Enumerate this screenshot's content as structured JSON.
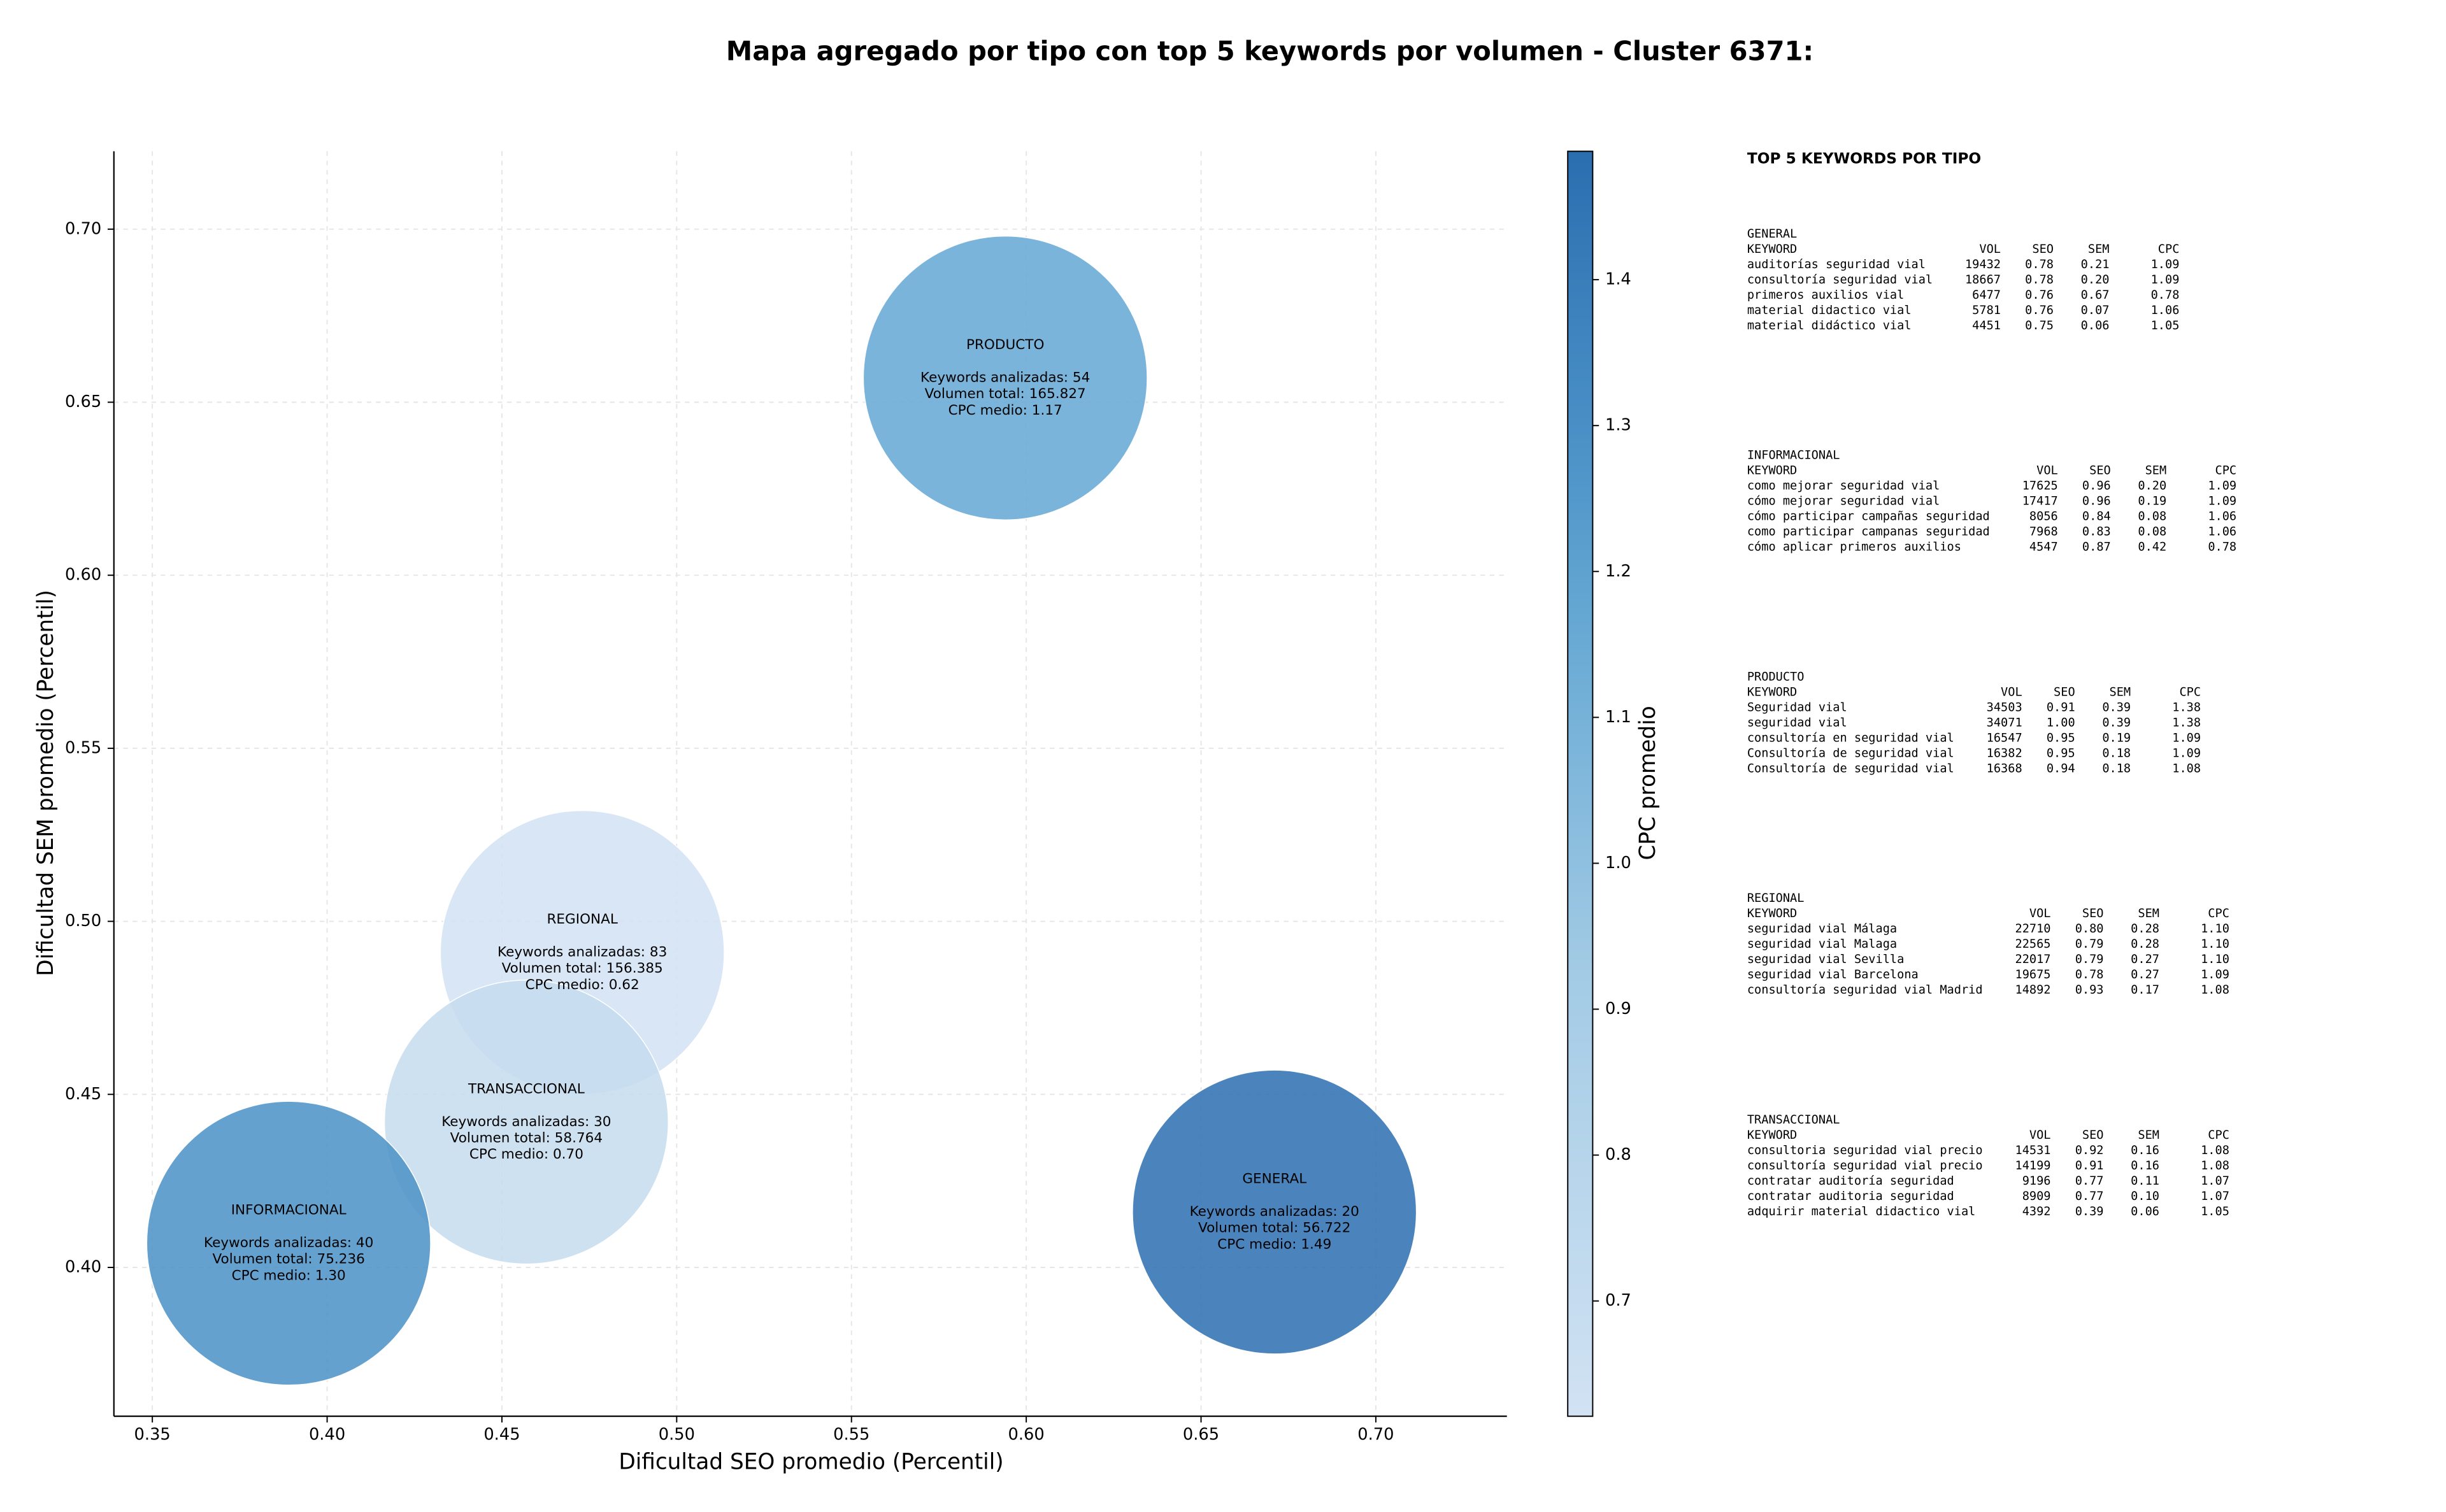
{
  "chart_data": {
    "type": "scatter",
    "title": "Mapa agregado por tipo con top 5 keywords por volumen - Cluster 6371:",
    "xlabel": "Dificultad SEO promedio (Percentil)",
    "ylabel": "Dificultad SEM promedio (Percentil)",
    "colorbar_label": "CPC promedio",
    "names": [
      "PRODUCTO",
      "REGIONAL",
      "TRANSACCIONAL",
      "INFORMACIONAL",
      "GENERAL"
    ],
    "x": [
      0.594,
      0.473,
      0.457,
      0.389,
      0.671
    ],
    "values": [
      0.657,
      0.491,
      0.442,
      0.407,
      0.416
    ],
    "color_values": [
      1.17,
      0.62,
      0.7,
      1.3,
      1.49
    ],
    "annotations": [
      [
        "Keywords analizadas: 54",
        "Volumen total: 165.827",
        "CPC medio: 1.17"
      ],
      [
        "Keywords analizadas: 83",
        "Volumen total: 156.385",
        "CPC medio: 0.62"
      ],
      [
        "Keywords analizadas: 30",
        "Volumen total: 58.764",
        "CPC medio: 0.70"
      ],
      [
        "Keywords analizadas: 40",
        "Volumen total: 75.236",
        "CPC medio: 1.30"
      ],
      [
        "Keywords analizadas: 20",
        "Volumen total: 56.722",
        "CPC medio: 1.49"
      ]
    ],
    "xlim": [
      0.339,
      0.7375
    ],
    "ylim": [
      0.357,
      0.7225
    ],
    "xticks": [
      0.35,
      {
        "value": 0.4,
        "label": "0.40"
      },
      0.45,
      {
        "value": 0.5,
        "label": "0.50"
      },
      0.55,
      {
        "value": 0.6,
        "label": "0.60"
      },
      0.65,
      {
        "value": 0.7,
        "label": "0.70"
      }
    ],
    "yticks": [
      {
        "value": 0.4,
        "label": "0.40"
      },
      0.45,
      {
        "value": 0.5,
        "label": "0.50"
      },
      0.55,
      {
        "value": 0.6,
        "label": "0.60"
      },
      0.65,
      {
        "value": 0.7,
        "label": "0.70"
      }
    ],
    "clim": [
      0.621,
      1.488
    ],
    "cticks": [
      0.7,
      0.8,
      0.9,
      {
        "value": 1.0,
        "label": "1.0"
      },
      1.1,
      1.2,
      1.3,
      1.4
    ],
    "grid": true
  },
  "side_panel": {
    "title": "TOP 5 KEYWORDS POR TIPO",
    "tables": [
      {
        "name": "GENERAL",
        "columns": [
          "KEYWORD",
          "VOL",
          "SEO",
          "SEM",
          "CPC"
        ],
        "rows": [
          [
            "auditorías seguridad vial",
            "19432",
            "0.78",
            "0.21",
            "1.09"
          ],
          [
            "consultoría seguridad vial",
            "18667",
            "0.78",
            "0.20",
            "1.09"
          ],
          [
            "primeros auxilios vial",
            "6477",
            "0.76",
            "0.67",
            "0.78"
          ],
          [
            "material didactico vial",
            "5781",
            "0.76",
            "0.07",
            "1.06"
          ],
          [
            "material didáctico vial",
            "4451",
            "0.75",
            "0.06",
            "1.05"
          ]
        ]
      },
      {
        "name": "INFORMACIONAL",
        "columns": [
          "KEYWORD",
          "VOL",
          "SEO",
          "SEM",
          "CPC"
        ],
        "rows": [
          [
            "como mejorar seguridad vial",
            "17625",
            "0.96",
            "0.20",
            "1.09"
          ],
          [
            "cómo mejorar seguridad vial",
            "17417",
            "0.96",
            "0.19",
            "1.09"
          ],
          [
            "cómo participar campañas seguridad",
            "8056",
            "0.84",
            "0.08",
            "1.06"
          ],
          [
            "como participar campanas seguridad",
            "7968",
            "0.83",
            "0.08",
            "1.06"
          ],
          [
            "cómo aplicar primeros auxilios",
            "4547",
            "0.87",
            "0.42",
            "0.78"
          ]
        ]
      },
      {
        "name": "PRODUCTO",
        "columns": [
          "KEYWORD",
          "VOL",
          "SEO",
          "SEM",
          "CPC"
        ],
        "rows": [
          [
            "Seguridad vial",
            "34503",
            "0.91",
            "0.39",
            "1.38"
          ],
          [
            "seguridad vial",
            "34071",
            "1.00",
            "0.39",
            "1.38"
          ],
          [
            "consultoría en seguridad vial",
            "16547",
            "0.95",
            "0.19",
            "1.09"
          ],
          [
            "Consultoría de seguridad vial",
            "16382",
            "0.95",
            "0.18",
            "1.09"
          ],
          [
            "Consultoría de seguridad vial",
            "16368",
            "0.94",
            "0.18",
            "1.08"
          ]
        ]
      },
      {
        "name": "REGIONAL",
        "columns": [
          "KEYWORD",
          "VOL",
          "SEO",
          "SEM",
          "CPC"
        ],
        "rows": [
          [
            "seguridad vial Málaga",
            "22710",
            "0.80",
            "0.28",
            "1.10"
          ],
          [
            "seguridad vial Malaga",
            "22565",
            "0.79",
            "0.28",
            "1.10"
          ],
          [
            "seguridad vial Sevilla",
            "22017",
            "0.79",
            "0.27",
            "1.10"
          ],
          [
            "seguridad vial Barcelona",
            "19675",
            "0.78",
            "0.27",
            "1.09"
          ],
          [
            "consultoría seguridad vial Madrid",
            "14892",
            "0.93",
            "0.17",
            "1.08"
          ]
        ]
      },
      {
        "name": "TRANSACCIONAL",
        "columns": [
          "KEYWORD",
          "VOL",
          "SEO",
          "SEM",
          "CPC"
        ],
        "rows": [
          [
            "consultoria seguridad vial precio",
            "14531",
            "0.92",
            "0.16",
            "1.08"
          ],
          [
            "consultoría seguridad vial precio",
            "14199",
            "0.91",
            "0.16",
            "1.08"
          ],
          [
            "contratar auditoría seguridad",
            "9196",
            "0.77",
            "0.11",
            "1.07"
          ],
          [
            "contratar auditoria seguridad",
            "8909",
            "0.77",
            "0.10",
            "1.07"
          ],
          [
            "adquirir material didactico vial",
            "4392",
            "0.39",
            "0.06",
            "1.05"
          ]
        ]
      }
    ]
  }
}
